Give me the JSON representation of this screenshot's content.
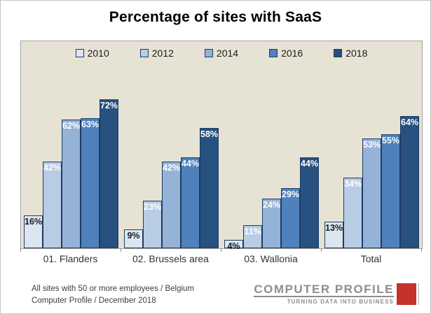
{
  "title": "Percentage of sites with SaaS",
  "chart_data": {
    "type": "bar",
    "title": "Percentage of sites with SaaS",
    "categories": [
      "01. Flanders",
      "02. Brussels area",
      "03. Wallonia",
      "Total"
    ],
    "series": [
      {
        "name": "2010",
        "color": "#DCE6F1",
        "label_color": "#1a1a1a",
        "values": [
          16,
          9,
          4,
          13
        ]
      },
      {
        "name": "2012",
        "color": "#B8CCE4",
        "label_color": "#ffffff",
        "values": [
          42,
          23,
          11,
          34
        ]
      },
      {
        "name": "2014",
        "color": "#95B3D7",
        "label_color": "#ffffff",
        "values": [
          62,
          42,
          24,
          53
        ]
      },
      {
        "name": "2016",
        "color": "#4F81BD",
        "label_color": "#ffffff",
        "values": [
          63,
          44,
          29,
          55
        ]
      },
      {
        "name": "2018",
        "color": "#27517F",
        "label_color": "#ffffff",
        "values": [
          72,
          58,
          44,
          64
        ]
      }
    ],
    "value_suffix": "%",
    "ylim": [
      0,
      100
    ],
    "grid": false,
    "legend_position": "top",
    "plot_bg": "#E7E3D4",
    "bar_border": "#1F3B63"
  },
  "footer": {
    "line1": "All sites with 50 or more employees / Belgium",
    "line2": "Computer Profile / December 2018"
  },
  "logo": {
    "name": "COMPUTER PROFILE",
    "tagline": "TURNING DATA INTO BUSINESS",
    "accent": "#C5312B"
  }
}
